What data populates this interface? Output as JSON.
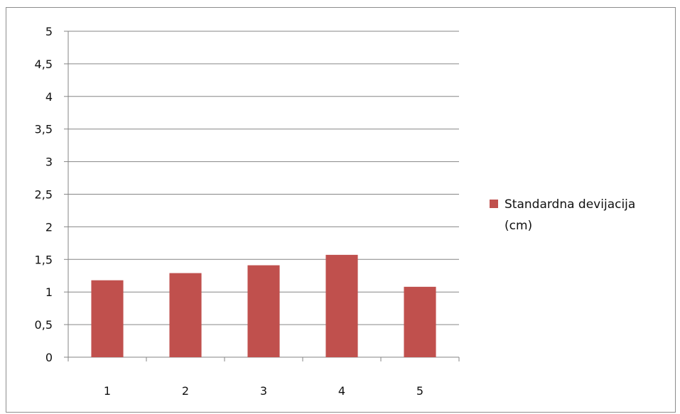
{
  "chart_data": {
    "type": "bar",
    "categories": [
      "1",
      "2",
      "3",
      "4",
      "5"
    ],
    "series": [
      {
        "name": "Standardna devijacija (cm)",
        "legend_lines": [
          "Standardna devijacija",
          "(cm)"
        ],
        "values": [
          1.18,
          1.29,
          1.41,
          1.57,
          1.08
        ],
        "color": "#c0504d"
      }
    ],
    "y_ticks": [
      "0",
      "0,5",
      "1",
      "1,5",
      "2",
      "2,5",
      "3",
      "3,5",
      "4",
      "4,5",
      "5"
    ],
    "ylim": [
      0,
      5
    ],
    "grid": true,
    "legend_position": "right",
    "colors": {
      "gridline": "#868686",
      "axis": "#868686",
      "border": "#8c8c8c"
    }
  }
}
